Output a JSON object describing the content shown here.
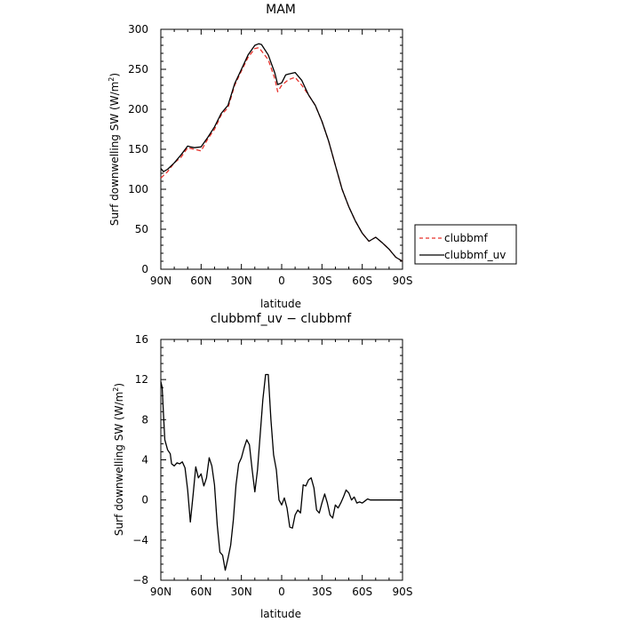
{
  "chart_data": [
    {
      "type": "line",
      "title": "MAM",
      "xlabel": "latitude",
      "ylabel": "Surf downwelling SW (W/m",
      "ylabel_sup": "2",
      "ylabel_tail": ")",
      "xlim": [
        90,
        -90
      ],
      "ylim": [
        0,
        300
      ],
      "x_ticks": [
        {
          "value": 90,
          "label": "90N"
        },
        {
          "value": 60,
          "label": "60N"
        },
        {
          "value": 30,
          "label": "30N"
        },
        {
          "value": 0,
          "label": "0"
        },
        {
          "value": -30,
          "label": "30S"
        },
        {
          "value": -60,
          "label": "60S"
        },
        {
          "value": -90,
          "label": "90S"
        }
      ],
      "y_ticks": [
        0,
        50,
        100,
        150,
        200,
        250,
        300
      ],
      "legend": {
        "placement": "right"
      },
      "series": [
        {
          "name": "clubbmf",
          "color": "#e8302a",
          "dash": "dashed",
          "x": [
            90,
            85,
            80,
            75,
            70,
            65,
            60,
            55,
            50,
            45,
            40,
            35,
            30,
            25,
            20,
            17,
            15,
            10,
            5,
            3,
            0,
            -5,
            -10,
            -15,
            -20,
            -25,
            -30,
            -35,
            -40,
            -45,
            -50,
            -55,
            -60,
            -65,
            -70,
            -75,
            -80,
            -85,
            -90
          ],
          "y": [
            114,
            122,
            133,
            140,
            152,
            150,
            148,
            163,
            175,
            193,
            202,
            230,
            248,
            265,
            276,
            277,
            273,
            262,
            238,
            222,
            230,
            237,
            240,
            230,
            218,
            205,
            185,
            160,
            130,
            100,
            78,
            60,
            45,
            35,
            40,
            33,
            25,
            15,
            10
          ]
        },
        {
          "name": "clubbmf_uv",
          "color": "#000000",
          "dash": "solid",
          "x": [
            90,
            88,
            85,
            80,
            75,
            70,
            68,
            65,
            60,
            55,
            50,
            45,
            40,
            35,
            30,
            25,
            20,
            17,
            15,
            10,
            5,
            3,
            0,
            -3,
            -5,
            -10,
            -15,
            -20,
            -25,
            -30,
            -35,
            -40,
            -45,
            -50,
            -55,
            -60,
            -65,
            -70,
            -75,
            -80,
            -85,
            -90
          ],
          "y": [
            126,
            122,
            125,
            133,
            143,
            154,
            153,
            152,
            153,
            165,
            178,
            195,
            205,
            232,
            250,
            268,
            280,
            282,
            281,
            268,
            245,
            231,
            233,
            243,
            244,
            246,
            236,
            218,
            205,
            185,
            160,
            130,
            100,
            78,
            60,
            45,
            35,
            40,
            33,
            25,
            15,
            10
          ]
        }
      ]
    },
    {
      "type": "line",
      "title": "clubbmf_uv − clubbmf",
      "xlabel": "latitude",
      "ylabel": "Surf downwelling SW (W/m",
      "ylabel_sup": "2",
      "ylabel_tail": ")",
      "xlim": [
        90,
        -90
      ],
      "ylim": [
        -8,
        16
      ],
      "x_ticks": [
        {
          "value": 90,
          "label": "90N"
        },
        {
          "value": 60,
          "label": "60N"
        },
        {
          "value": 30,
          "label": "30N"
        },
        {
          "value": 0,
          "label": "0"
        },
        {
          "value": -30,
          "label": "30S"
        },
        {
          "value": -60,
          "label": "60S"
        },
        {
          "value": -90,
          "label": "90S"
        }
      ],
      "y_ticks": [
        -8,
        -4,
        0,
        4,
        8,
        12,
        16
      ],
      "series": [
        {
          "color": "#000000",
          "dash": "solid",
          "x": [
            90,
            89,
            88,
            87,
            85,
            83,
            82,
            80,
            78,
            76,
            74,
            72,
            70,
            68,
            66,
            64,
            62,
            60,
            58,
            56,
            54,
            52,
            50,
            48,
            46,
            44,
            42,
            40,
            38,
            36,
            34,
            32,
            30,
            28,
            26,
            24,
            22,
            20,
            18,
            16,
            14,
            12,
            10,
            8,
            6,
            4,
            2,
            0,
            -2,
            -4,
            -6,
            -8,
            -10,
            -12,
            -14,
            -16,
            -18,
            -20,
            -22,
            -24,
            -26,
            -28,
            -30,
            -32,
            -34,
            -36,
            -38,
            -40,
            -42,
            -44,
            -46,
            -48,
            -50,
            -52,
            -54,
            -56,
            -58,
            -60,
            -62,
            -64,
            -66,
            -68,
            -70,
            -72,
            -74,
            -76,
            -78,
            -80,
            -82,
            -84,
            -86,
            -88,
            -90
          ],
          "y": [
            11.8,
            11.2,
            8.5,
            6,
            5,
            4.6,
            3.6,
            3.4,
            3.7,
            3.6,
            3.8,
            3.2,
            1,
            -2.2,
            0.5,
            3.3,
            2.2,
            2.6,
            1.4,
            2.2,
            4.2,
            3.4,
            1.5,
            -2.5,
            -5.2,
            -5.5,
            -7,
            -5.8,
            -4.5,
            -2,
            1.5,
            3.6,
            4.2,
            5.2,
            6,
            5.5,
            3,
            0.8,
            3,
            6.5,
            10,
            12.5,
            12.5,
            8,
            4.5,
            3,
            0,
            -0.5,
            0.2,
            -0.8,
            -2.7,
            -2.8,
            -1.5,
            -1,
            -1.3,
            1.5,
            1.4,
            2,
            2.2,
            1.2,
            -1,
            -1.3,
            -0.3,
            0.6,
            -0.3,
            -1.5,
            -1.8,
            -0.5,
            -0.8,
            -0.3,
            0.3,
            1,
            0.7,
            0,
            0.3,
            -0.3,
            -0.2,
            -0.3,
            -0.1,
            0.1,
            0,
            0,
            0,
            0,
            0,
            0,
            0,
            0,
            0,
            0,
            0,
            0,
            0
          ]
        }
      ]
    }
  ]
}
